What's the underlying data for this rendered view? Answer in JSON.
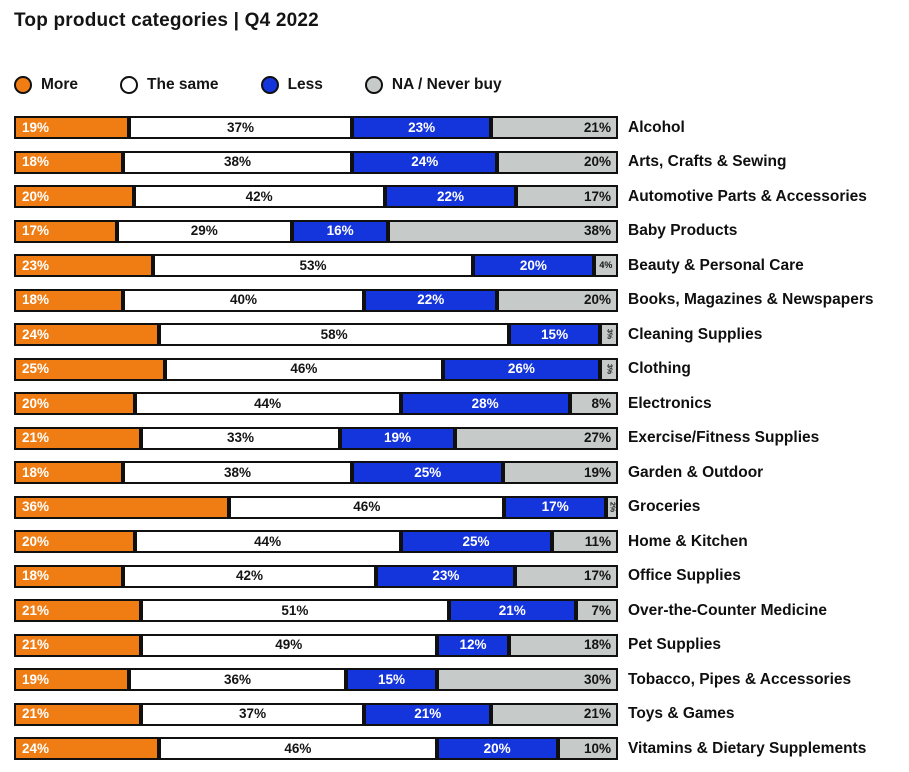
{
  "page": {
    "title": "Top product categories | Q4 2022"
  },
  "colors": {
    "more": "#F07D13",
    "same": "#FFFFFF",
    "less": "#1434DC",
    "na": "#C6CAC8",
    "outline": "#101010"
  },
  "legend": [
    {
      "key": "more",
      "label": "More",
      "color": "#F07D13"
    },
    {
      "key": "same",
      "label": "The same",
      "color": "#FFFFFF"
    },
    {
      "key": "less",
      "label": "Less",
      "color": "#1434DC"
    },
    {
      "key": "na",
      "label": "NA / Never buy",
      "color": "#C6CAC8"
    }
  ],
  "chart_data": {
    "type": "bar",
    "stacked": true,
    "orientation": "horizontal",
    "title": "Top product categories | Q4 2022",
    "value_format": "percent",
    "legend_position": "top",
    "categories": [
      "Alcohol",
      "Arts, Crafts & Sewing",
      "Automotive Parts & Accessories",
      "Baby Products",
      "Beauty & Personal Care",
      "Books, Magazines & Newspapers",
      "Cleaning Supplies",
      "Clothing",
      "Electronics",
      "Exercise/Fitness Supplies",
      "Garden & Outdoor",
      "Groceries",
      "Home & Kitchen",
      "Office Supplies",
      "Over-the-Counter Medicine",
      "Pet Supplies",
      "Tobacco, Pipes & Accessories",
      "Toys & Games",
      "Vitamins & Dietary Supplements"
    ],
    "series": [
      {
        "name": "More",
        "key": "more",
        "color": "#F07D13",
        "values": [
          19,
          18,
          20,
          17,
          23,
          18,
          24,
          25,
          20,
          21,
          18,
          36,
          20,
          18,
          21,
          21,
          19,
          21,
          24
        ]
      },
      {
        "name": "The same",
        "key": "same",
        "color": "#FFFFFF",
        "values": [
          37,
          38,
          42,
          29,
          53,
          40,
          58,
          46,
          44,
          33,
          38,
          46,
          44,
          42,
          51,
          49,
          36,
          37,
          46
        ]
      },
      {
        "name": "Less",
        "key": "less",
        "color": "#1434DC",
        "values": [
          23,
          24,
          22,
          16,
          20,
          22,
          15,
          26,
          28,
          19,
          25,
          17,
          25,
          23,
          21,
          12,
          15,
          21,
          20
        ]
      },
      {
        "name": "NA / Never buy",
        "key": "na",
        "color": "#C6CAC8",
        "values": [
          21,
          20,
          17,
          38,
          4,
          20,
          3,
          3,
          8,
          27,
          19,
          2,
          11,
          17,
          7,
          18,
          30,
          21,
          10
        ]
      }
    ]
  }
}
